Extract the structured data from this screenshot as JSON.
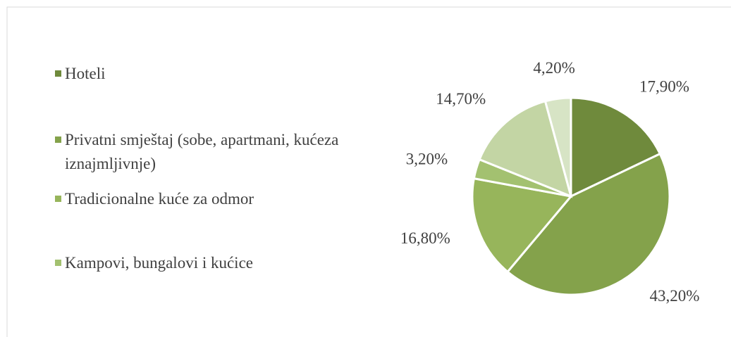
{
  "chart_data": {
    "type": "pie",
    "categories": [
      "Hoteli",
      "Privatni smještaj (sobe, apartmani, kućeza iznajmljivnje)",
      "Tradicionalne kuće za odmor",
      "Kampovi, bungalovi i kućice",
      null,
      null
    ],
    "values": [
      17.9,
      43.2,
      16.8,
      3.2,
      14.7,
      4.2
    ],
    "value_labels": [
      "17,90%",
      "43,20%",
      "16,80%",
      "3,20%",
      "14,70%",
      "4,20%"
    ],
    "colors": [
      "#6f8a3c",
      "#84a24b",
      "#97b55b",
      "#a3c170",
      "#c3d5a4",
      "#d7e4c5"
    ],
    "legend": "left"
  }
}
